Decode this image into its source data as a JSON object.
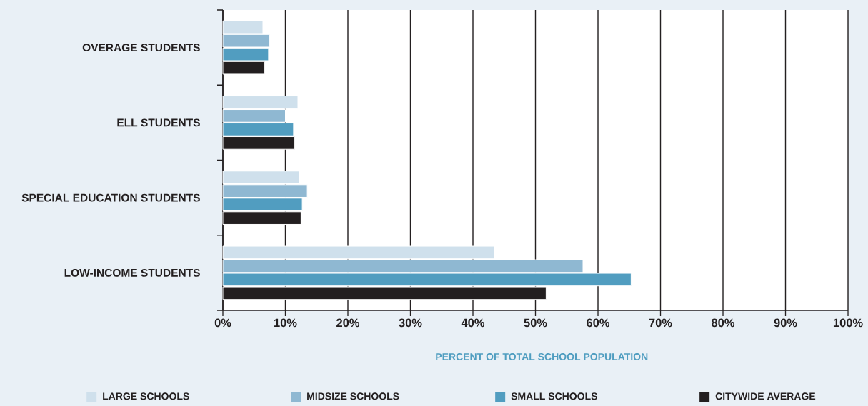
{
  "chart_data": {
    "type": "bar",
    "orientation": "horizontal",
    "xlabel": "PERCENT OF TOTAL SCHOOL POPULATION",
    "categories": [
      "OVERAGE STUDENTS",
      "ELL STUDENTS",
      "SPECIAL EDUCATION STUDENTS",
      "LOW-INCOME STUDENTS"
    ],
    "series": [
      {
        "name": "LARGE SCHOOLS",
        "color": "#cfe0ec",
        "values": [
          6.4,
          12.0,
          12.2,
          43.4
        ]
      },
      {
        "name": "MIDSIZE SCHOOLS",
        "color": "#8fb8d2",
        "values": [
          7.5,
          10.0,
          13.5,
          57.6
        ]
      },
      {
        "name": "SMALL SCHOOLS",
        "color": "#519dc0",
        "values": [
          7.3,
          11.3,
          12.7,
          65.3
        ]
      },
      {
        "name": "CITYWIDE AVERAGE",
        "color": "#231f20",
        "values": [
          6.7,
          11.5,
          12.5,
          51.7
        ]
      }
    ],
    "xlim": [
      0,
      100
    ],
    "xticks": [
      {
        "value": 0,
        "label": "0%"
      },
      {
        "value": 10,
        "label": "10%"
      },
      {
        "value": 20,
        "label": "20%"
      },
      {
        "value": 30,
        "label": "30%"
      },
      {
        "value": 40,
        "label": "40%"
      },
      {
        "value": 50,
        "label": "50%"
      },
      {
        "value": 60,
        "label": "60%"
      },
      {
        "value": 70,
        "label": "70%"
      },
      {
        "value": 80,
        "label": "80%"
      },
      {
        "value": 90,
        "label": "90%"
      },
      {
        "value": 100,
        "label": "100%"
      }
    ],
    "grid": "x",
    "legend": "bottom"
  }
}
